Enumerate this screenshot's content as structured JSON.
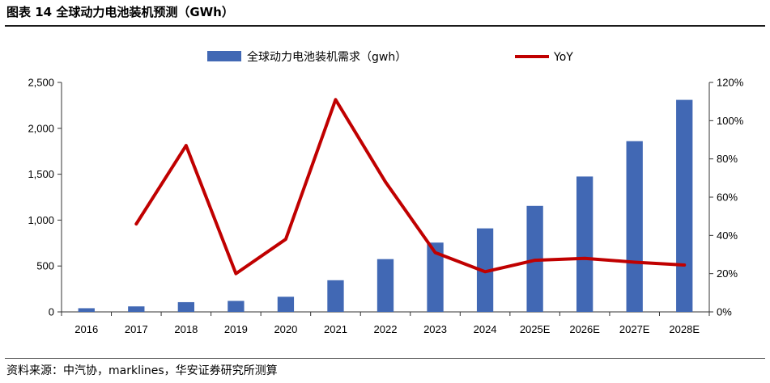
{
  "figure": {
    "title": "图表 14  全球动力电池装机预测（GWh）",
    "source": "资料来源：中汽协，marklines，华安证券研究所测算"
  },
  "colors": {
    "bar": "#4168b4",
    "line": "#c00000",
    "axis": "#333333"
  },
  "chart_data": {
    "type": "bar",
    "categories": [
      "2016",
      "2017",
      "2018",
      "2019",
      "2020",
      "2021",
      "2022",
      "2023",
      "2024",
      "2025E",
      "2026E",
      "2027E",
      "2028E"
    ],
    "series": [
      {
        "name": "全球动力电池装机需求（gwh）",
        "type": "bar",
        "axis": "left",
        "values": [
          40,
          60,
          106,
          120,
          165,
          345,
          575,
          755,
          910,
          1155,
          1475,
          1860,
          2310
        ]
      },
      {
        "name": "YoY",
        "type": "line",
        "axis": "right",
        "values": [
          null,
          0.46,
          0.87,
          0.2,
          0.38,
          1.11,
          0.68,
          0.31,
          0.21,
          0.27,
          0.28,
          0.26,
          0.245
        ]
      }
    ],
    "ylim": [
      0,
      2500
    ],
    "yticks": [
      "0",
      "500",
      "1,000",
      "1,500",
      "2,000",
      "2,500"
    ],
    "y2lim": [
      0,
      1.2
    ],
    "y2ticks": [
      "0%",
      "20%",
      "40%",
      "60%",
      "80%",
      "100%",
      "120%"
    ],
    "grid": false,
    "legend": "top"
  }
}
